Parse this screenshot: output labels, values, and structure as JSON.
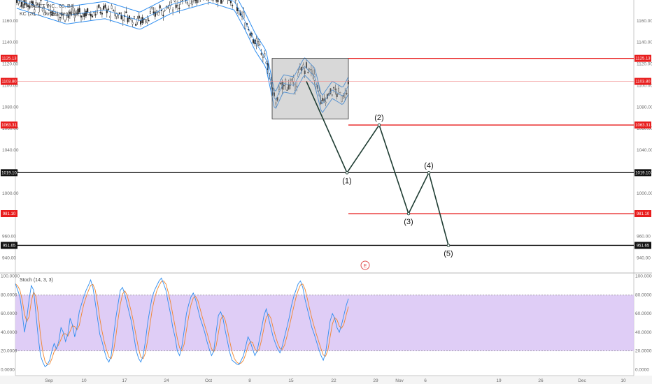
{
  "legend": {
    "symbol": "ALPHABET INC., 60, BA",
    "indicator_kc": "KC (20, 1, close, true range)",
    "indicator_stoch": "Stoch (14, 3, 3)"
  },
  "earnings_marker": "E",
  "colors": {
    "red_level": "#e81c1c",
    "black_level": "#111111",
    "wave_line": "#1f3d33",
    "keltner": "#2f8ef0",
    "stoch_k": "#2f8ef0",
    "stoch_d": "#f0862f",
    "stoch_band": "#dcc8f5",
    "box_fill": "#9e9e9e"
  },
  "chart_data": [
    {
      "type": "candlestick",
      "y_axis": {
        "range": [
          928,
          1178
        ],
        "ticks": [
          "1160.00",
          "1140.00",
          "1120.00",
          "1100.00",
          "1080.00",
          "1060.00",
          "1040.00",
          "1020.00",
          "1000.00",
          "980.00",
          "960.00",
          "940.00"
        ],
        "tick_values": [
          1160,
          1140,
          1120,
          1100,
          1080,
          1060,
          1040,
          1020,
          1000,
          980,
          960,
          940
        ]
      },
      "x_axis": {
        "labels": [
          "Sep",
          "10",
          "17",
          "24",
          "Oct",
          "8",
          "15",
          "22",
          "29",
          "Nov",
          "6",
          "19",
          "26",
          "Dec",
          "10"
        ]
      },
      "price_levels": [
        {
          "value": 1125.13,
          "label": "1125.13",
          "color": "red"
        },
        {
          "value": 1103.8,
          "label": "1103.80",
          "color": "red-thin"
        },
        {
          "value": 1063.31,
          "label": "1063.31",
          "color": "red"
        },
        {
          "value": 1019.1,
          "label": "1019.10",
          "color": "black"
        },
        {
          "value": 981.1,
          "label": "981.10",
          "color": "red"
        },
        {
          "value": 951.65,
          "label": "951.65",
          "color": "black"
        }
      ],
      "elliott_wave": {
        "start": 1103.8,
        "points": [
          {
            "label": "(1)",
            "value": 1019.1
          },
          {
            "label": "(2)",
            "value": 1063.31
          },
          {
            "label": "(3)",
            "value": 981.1
          },
          {
            "label": "(4)",
            "value": 1019.1
          },
          {
            "label": "(5)",
            "value": 951.65
          }
        ]
      },
      "consolidation_box": {
        "high": 1125.13,
        "low": 1069
      }
    },
    {
      "type": "line",
      "name": "Stoch (14, 3, 3)",
      "y_axis": {
        "range": [
          -5,
          102
        ],
        "ticks": [
          "100.0000",
          "80.0000",
          "60.0000",
          "40.0000",
          "20.0000",
          "0.0000"
        ],
        "tick_values": [
          100,
          80,
          60,
          40,
          20,
          0
        ]
      },
      "band": [
        20,
        80
      ],
      "k_values": [
        92,
        85,
        78,
        60,
        40,
        55,
        75,
        90,
        85,
        60,
        35,
        15,
        8,
        3,
        5,
        10,
        20,
        28,
        22,
        30,
        45,
        40,
        30,
        38,
        55,
        48,
        35,
        45,
        62,
        70,
        78,
        85,
        90,
        96,
        88,
        72,
        55,
        38,
        30,
        20,
        12,
        8,
        15,
        35,
        55,
        70,
        85,
        88,
        80,
        70,
        60,
        50,
        35,
        20,
        12,
        8,
        15,
        30,
        50,
        65,
        78,
        85,
        90,
        95,
        98,
        92,
        85,
        72,
        60,
        45,
        35,
        20,
        15,
        25,
        42,
        60,
        70,
        78,
        82,
        75,
        65,
        55,
        48,
        40,
        30,
        22,
        15,
        20,
        40,
        58,
        62,
        55,
        42,
        30,
        18,
        10,
        8,
        6,
        5,
        10,
        15,
        25,
        35,
        30,
        22,
        15,
        20,
        32,
        45,
        58,
        65,
        55,
        45,
        35,
        28,
        22,
        18,
        25,
        35,
        45,
        55,
        68,
        78,
        85,
        92,
        95,
        88,
        75,
        65,
        55,
        45,
        38,
        30,
        22,
        15,
        10,
        18,
        35,
        52,
        60,
        55,
        45,
        40,
        48,
        58,
        68,
        76
      ]
    }
  ]
}
